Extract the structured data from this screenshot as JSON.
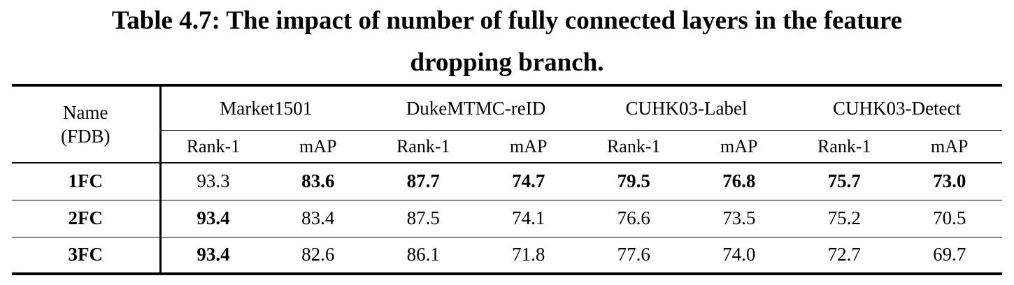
{
  "caption": {
    "line1": "Table 4.7: The impact of number of fully connected layers in the feature",
    "line2": "dropping branch."
  },
  "table": {
    "name_header_line1": "Name",
    "name_header_line2": "(FDB)",
    "datasets": [
      "Market1501",
      "DukeMTMC-reID",
      "CUHK03-Label",
      "CUHK03-Detect"
    ],
    "metrics": [
      "Rank-1",
      "mAP",
      "Rank-1",
      "mAP",
      "Rank-1",
      "mAP",
      "Rank-1",
      "mAP"
    ],
    "rows": [
      {
        "name": "1FC",
        "values": [
          "93.3",
          "83.6",
          "87.7",
          "74.7",
          "79.5",
          "76.8",
          "75.7",
          "73.0"
        ],
        "bold": [
          false,
          true,
          true,
          true,
          true,
          true,
          true,
          true
        ]
      },
      {
        "name": "2FC",
        "values": [
          "93.4",
          "83.4",
          "87.5",
          "74.1",
          "76.6",
          "73.5",
          "75.2",
          "70.5"
        ],
        "bold": [
          true,
          false,
          false,
          false,
          false,
          false,
          false,
          false
        ]
      },
      {
        "name": "3FC",
        "values": [
          "93.4",
          "82.6",
          "86.1",
          "71.8",
          "77.6",
          "74.0",
          "72.7",
          "69.7"
        ],
        "bold": [
          true,
          false,
          false,
          false,
          false,
          false,
          false,
          false
        ]
      }
    ]
  }
}
